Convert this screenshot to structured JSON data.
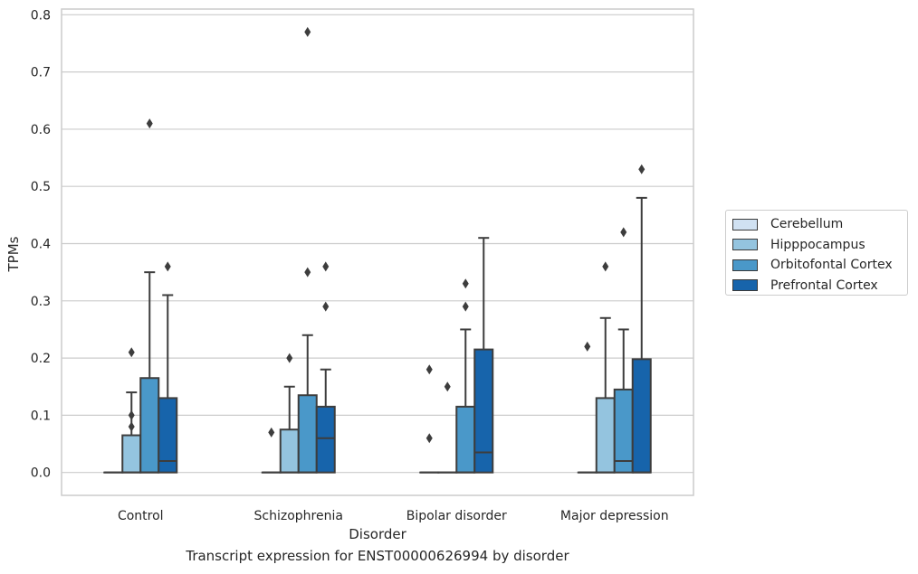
{
  "caption": "Transcript expression for ENST00000626994 by disorder",
  "chart_data": {
    "type": "box",
    "xlabel": "Disorder",
    "ylabel": "TPMs",
    "ylim": [
      -0.04,
      0.81
    ],
    "yticks": [
      "0.0",
      "0.1",
      "0.2",
      "0.3",
      "0.4",
      "0.5",
      "0.6",
      "0.7",
      "0.8"
    ],
    "grid": true,
    "legend_position": "right",
    "categories": [
      "Control",
      "Schizophrenia",
      "Bipolar disorder",
      "Major depression"
    ],
    "series": [
      {
        "name": "Cerebellum",
        "color": "#d0e1f2"
      },
      {
        "name": "Hipppocampus",
        "color": "#94c4df"
      },
      {
        "name": "Orbitofontal Cortex",
        "color": "#4a98c9"
      },
      {
        "name": "Prefrontal Cortex",
        "color": "#1764ab"
      }
    ],
    "boxes": [
      [
        {
          "q1": 0,
          "median": 0,
          "q3": 0,
          "whisker_low": 0,
          "whisker_high": 0,
          "outliers": []
        },
        {
          "q1": 0,
          "median": 0,
          "q3": 0.065,
          "whisker_low": 0,
          "whisker_high": 0.14,
          "outliers": [
            0.08,
            0.1,
            0.21
          ]
        },
        {
          "q1": 0,
          "median": 0,
          "q3": 0.165,
          "whisker_low": 0,
          "whisker_high": 0.35,
          "outliers": [
            0.61
          ]
        },
        {
          "q1": 0,
          "median": 0.02,
          "q3": 0.13,
          "whisker_low": 0,
          "whisker_high": 0.31,
          "outliers": [
            0.36
          ]
        }
      ],
      [
        {
          "q1": 0,
          "median": 0,
          "q3": 0,
          "whisker_low": 0,
          "whisker_high": 0,
          "outliers": [
            0.07
          ]
        },
        {
          "q1": 0,
          "median": 0,
          "q3": 0.075,
          "whisker_low": 0,
          "whisker_high": 0.15,
          "outliers": [
            0.2
          ]
        },
        {
          "q1": 0,
          "median": 0,
          "q3": 0.135,
          "whisker_low": 0,
          "whisker_high": 0.24,
          "outliers": [
            0.35,
            0.77
          ]
        },
        {
          "q1": 0,
          "median": 0.06,
          "q3": 0.115,
          "whisker_low": 0,
          "whisker_high": 0.18,
          "outliers": [
            0.29,
            0.36
          ]
        }
      ],
      [
        {
          "q1": 0,
          "median": 0,
          "q3": 0,
          "whisker_low": 0,
          "whisker_high": 0,
          "outliers": [
            0.06,
            0.18
          ]
        },
        {
          "q1": 0,
          "median": 0,
          "q3": 0,
          "whisker_low": 0,
          "whisker_high": 0,
          "outliers": [
            0.15
          ]
        },
        {
          "q1": 0,
          "median": 0,
          "q3": 0.115,
          "whisker_low": 0,
          "whisker_high": 0.25,
          "outliers": [
            0.29,
            0.33
          ]
        },
        {
          "q1": 0,
          "median": 0.035,
          "q3": 0.215,
          "whisker_low": 0,
          "whisker_high": 0.41,
          "outliers": []
        }
      ],
      [
        {
          "q1": 0,
          "median": 0,
          "q3": 0,
          "whisker_low": 0,
          "whisker_high": 0,
          "outliers": [
            0.22
          ]
        },
        {
          "q1": 0,
          "median": 0,
          "q3": 0.13,
          "whisker_low": 0,
          "whisker_high": 0.27,
          "outliers": [
            0.36
          ]
        },
        {
          "q1": 0,
          "median": 0.02,
          "q3": 0.145,
          "whisker_low": 0,
          "whisker_high": 0.25,
          "outliers": [
            0.42
          ]
        },
        {
          "q1": 0,
          "median": 0,
          "q3": 0.198,
          "whisker_low": 0,
          "whisker_high": 0.48,
          "outliers": [
            0.53
          ]
        }
      ]
    ]
  }
}
